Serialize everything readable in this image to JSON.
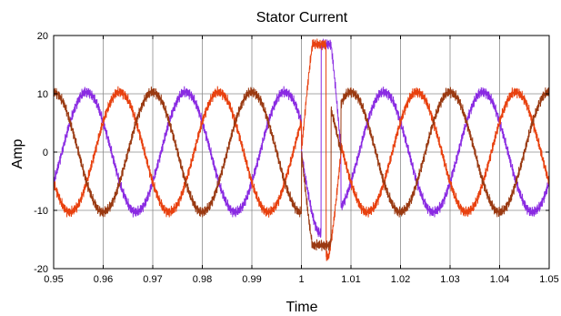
{
  "chart_data": {
    "type": "line",
    "title": "Stator Current",
    "xlabel": "Time",
    "ylabel": "Amp",
    "xlim": [
      0.95,
      1.05
    ],
    "ylim": [
      -20,
      20
    ],
    "xticks": [
      "0.95",
      "0.96",
      "0.97",
      "0.98",
      "0.99",
      "1",
      "1.01",
      "1.02",
      "1.03",
      "1.04",
      "1.05"
    ],
    "yticks": [
      "20",
      "10",
      "0",
      "-10",
      "-20"
    ],
    "grid": true,
    "legend": "none",
    "frequency_hz": 50,
    "amplitude": 10.3,
    "fault": {
      "start": 1.0,
      "end": 1.008,
      "peak_positive": 18.5,
      "peak_negative": -18.0
    },
    "series": [
      {
        "color": "#8a2be2",
        "phase_deg": 150,
        "values_desc": ""
      },
      {
        "color": "#e8410f",
        "phase_deg": 30
      },
      {
        "color": "#9a3a12",
        "phase_deg": -90
      }
    ]
  }
}
